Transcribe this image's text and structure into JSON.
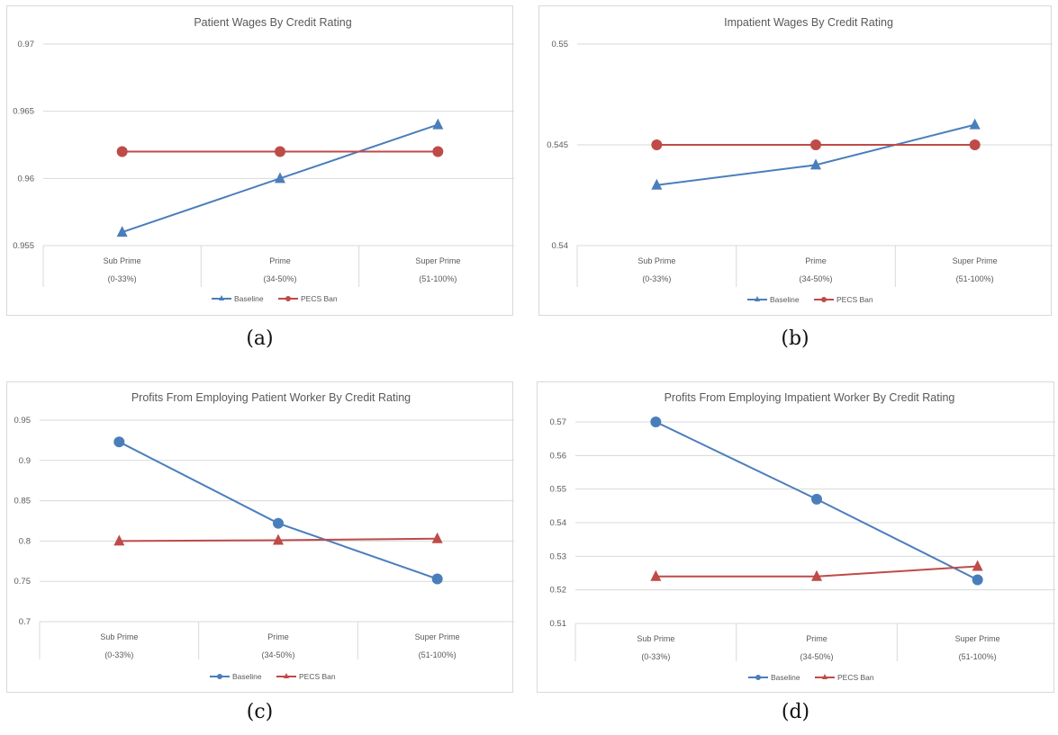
{
  "panels": [
    {
      "caption": "(a)",
      "chart_data": {
        "type": "line",
        "title": "Patient Wages By Credit Rating",
        "categories": [
          [
            "Sub Prime",
            "(0-33%)"
          ],
          [
            "Prime",
            "(34-50%)"
          ],
          [
            "Super Prime",
            "(51-100%)"
          ]
        ],
        "ylim": [
          0.955,
          0.97
        ],
        "yticks": [
          "0.955",
          "0.96",
          "0.965",
          "0.97"
        ],
        "grid": true,
        "legend_position": "bottom",
        "series": [
          {
            "name": "Baseline",
            "values": [
              0.956,
              0.96,
              0.964
            ],
            "color": "#4a7ebb",
            "marker": "triangle"
          },
          {
            "name": "PECS Ban",
            "values": [
              0.962,
              0.962,
              0.962
            ],
            "color": "#be4b48",
            "marker": "circle"
          }
        ]
      }
    },
    {
      "caption": "(b)",
      "chart_data": {
        "type": "line",
        "title": "Impatient Wages By Credit Rating",
        "categories": [
          [
            "Sub Prime",
            "(0-33%)"
          ],
          [
            "Prime",
            "(34-50%)"
          ],
          [
            "Super Prime",
            "(51-100%)"
          ]
        ],
        "ylim": [
          0.54,
          0.55
        ],
        "yticks": [
          "0.54",
          "0.545",
          "0.55"
        ],
        "grid": true,
        "legend_position": "bottom",
        "series": [
          {
            "name": "Baseline",
            "values": [
              0.543,
              0.544,
              0.546
            ],
            "color": "#4a7ebb",
            "marker": "triangle"
          },
          {
            "name": "PECS Ban",
            "values": [
              0.545,
              0.545,
              0.545
            ],
            "color": "#be4b48",
            "marker": "circle"
          }
        ]
      }
    },
    {
      "caption": "(c)",
      "chart_data": {
        "type": "line",
        "title": "Profits From Employing Patient Worker By Credit Rating",
        "categories": [
          [
            "Sub Prime",
            "(0-33%)"
          ],
          [
            "Prime",
            "(34-50%)"
          ],
          [
            "Super Prime",
            "(51-100%)"
          ]
        ],
        "ylim": [
          0.7,
          0.95
        ],
        "yticks": [
          "0.7",
          "0.75",
          "0.8",
          "0.85",
          "0.9",
          "0.95"
        ],
        "grid": true,
        "legend_position": "bottom",
        "series": [
          {
            "name": "Baseline",
            "values": [
              0.923,
              0.822,
              0.753
            ],
            "color": "#4a7ebb",
            "marker": "circle"
          },
          {
            "name": "PECS Ban",
            "values": [
              0.8,
              0.801,
              0.803
            ],
            "color": "#be4b48",
            "marker": "triangle"
          }
        ]
      }
    },
    {
      "caption": "(d)",
      "chart_data": {
        "type": "line",
        "title": "Profits From Employing Impatient Worker By Credit Rating",
        "categories": [
          [
            "Sub Prime",
            "(0-33%)"
          ],
          [
            "Prime",
            "(34-50%)"
          ],
          [
            "Super Prime",
            "(51-100%)"
          ]
        ],
        "ylim": [
          0.51,
          0.57
        ],
        "yticks": [
          "0.51",
          "0.52",
          "0.53",
          "0.54",
          "0.55",
          "0.56",
          "0.57"
        ],
        "grid": true,
        "legend_position": "bottom",
        "series": [
          {
            "name": "Baseline",
            "values": [
              0.57,
              0.547,
              0.523
            ],
            "color": "#4a7ebb",
            "marker": "circle"
          },
          {
            "name": "PECS Ban",
            "values": [
              0.524,
              0.524,
              0.527
            ],
            "color": "#be4b48",
            "marker": "triangle"
          }
        ]
      }
    }
  ]
}
